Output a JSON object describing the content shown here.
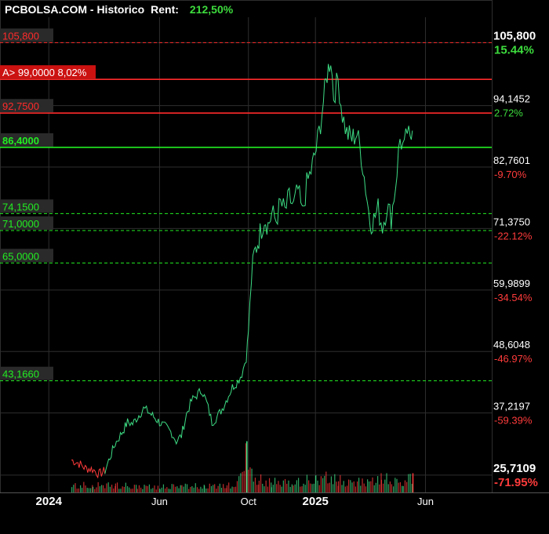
{
  "header": {
    "site": "PCBOLSA.COM - Historico",
    "rent_label": "Rent:",
    "rent_value": "212,50%"
  },
  "colors": {
    "background": "#000000",
    "grid": "#2e2e2e",
    "price_line_up": "#3ddc84",
    "price_line_down": "#ff3b3b",
    "support_green": "#22ee22",
    "resistance_red": "#ff2a2a",
    "label_bg": "#2a2a2a",
    "alert_bg": "#cc1111",
    "pct_positive": "#3ddc3d",
    "pct_negative": "#ff3b3b"
  },
  "chart_data": {
    "type": "line",
    "x_axis_labels": [
      {
        "label": "2024",
        "date": "2024-01-01",
        "bold": true
      },
      {
        "label": "Jun",
        "date": "2024-06-01",
        "bold": false
      },
      {
        "label": "Oct",
        "date": "2024-10-01",
        "bold": false
      },
      {
        "label": "2025",
        "date": "2025-01-01",
        "bold": true
      },
      {
        "label": "Jun",
        "date": "2025-06-01",
        "bold": false
      }
    ],
    "x_range": [
      "2023-10-26",
      "2025-08-31"
    ],
    "y_range": [
      22.5,
      110.5
    ],
    "grid": true,
    "y_ticks": [
      {
        "price": "105,800",
        "pct": "15.44%",
        "value": 105.8,
        "bold": true,
        "positive": true
      },
      {
        "price": "94,1452",
        "pct": "2.72%",
        "value": 94.1452,
        "bold": false,
        "positive": true
      },
      {
        "price": "82,7601",
        "pct": "-9.70%",
        "value": 82.7601,
        "bold": false,
        "positive": false
      },
      {
        "price": "71,3750",
        "pct": "-22.12%",
        "value": 71.375,
        "bold": false,
        "positive": false
      },
      {
        "price": "59,9899",
        "pct": "-34.54%",
        "value": 59.9899,
        "bold": false,
        "positive": false
      },
      {
        "price": "48,6048",
        "pct": "-46.97%",
        "value": 48.6048,
        "bold": false,
        "positive": false
      },
      {
        "price": "37,2197",
        "pct": "-59.39%",
        "value": 37.2197,
        "bold": false,
        "positive": false
      },
      {
        "price": "25,7109",
        "pct": "-71.95%",
        "value": 25.7109,
        "bold": true,
        "positive": false
      }
    ],
    "levels": [
      {
        "label": "105,800",
        "value": 105.8,
        "kind": "resistance",
        "dashed": true
      },
      {
        "label": "A> 99,0000  8,02%",
        "value": 99.0,
        "kind": "alert",
        "dashed": false
      },
      {
        "label": "92,7500",
        "value": 92.75,
        "kind": "resistance",
        "dashed": false
      },
      {
        "label": "86,4000",
        "value": 86.4,
        "kind": "support",
        "dashed": false
      },
      {
        "label": "74,1500",
        "value": 74.15,
        "kind": "support",
        "dashed": true
      },
      {
        "label": "71,0000",
        "value": 71.0,
        "kind": "support",
        "dashed": true
      },
      {
        "label": "65,0000",
        "value": 65.0,
        "kind": "support",
        "dashed": true
      },
      {
        "label": "43,1660",
        "value": 43.166,
        "kind": "support",
        "dashed": true
      }
    ],
    "series": [
      {
        "points": [
          [
            "2024-02-01",
            28.5
          ],
          [
            "2024-02-10",
            28.0
          ],
          [
            "2024-02-20",
            27.0
          ],
          [
            "2024-03-01",
            26.8
          ],
          [
            "2024-03-10",
            25.9
          ],
          [
            "2024-03-18",
            26.5
          ],
          [
            "2024-03-25",
            29.0
          ],
          [
            "2024-04-01",
            31.5
          ],
          [
            "2024-04-10",
            33.5
          ],
          [
            "2024-04-18",
            35.5
          ],
          [
            "2024-04-25",
            35.2
          ],
          [
            "2024-05-02",
            36.5
          ],
          [
            "2024-05-10",
            38.0
          ],
          [
            "2024-05-16",
            37.5
          ],
          [
            "2024-05-24",
            36.5
          ],
          [
            "2024-06-01",
            35.5
          ],
          [
            "2024-06-10",
            34.5
          ],
          [
            "2024-06-18",
            33.5
          ],
          [
            "2024-06-24",
            32.0
          ],
          [
            "2024-07-01",
            33.0
          ],
          [
            "2024-07-08",
            37.0
          ],
          [
            "2024-07-15",
            39.5
          ],
          [
            "2024-07-22",
            40.5
          ],
          [
            "2024-07-29",
            41.5
          ],
          [
            "2024-08-05",
            39.0
          ],
          [
            "2024-08-12",
            35.5
          ],
          [
            "2024-08-19",
            36.5
          ],
          [
            "2024-08-26",
            38.0
          ],
          [
            "2024-09-02",
            40.0
          ],
          [
            "2024-09-09",
            42.0
          ],
          [
            "2024-09-16",
            43.0
          ],
          [
            "2024-09-22",
            44.5
          ],
          [
            "2024-09-28",
            47.5
          ],
          [
            "2024-10-01",
            52.5
          ],
          [
            "2024-10-05",
            62.0
          ],
          [
            "2024-10-09",
            66.5
          ],
          [
            "2024-10-12",
            68.0
          ],
          [
            "2024-10-17",
            70.5
          ],
          [
            "2024-10-23",
            73.5
          ],
          [
            "2024-10-28",
            72.0
          ],
          [
            "2024-11-02",
            74.0
          ],
          [
            "2024-11-08",
            73.0
          ],
          [
            "2024-11-14",
            76.0
          ],
          [
            "2024-11-20",
            74.5
          ],
          [
            "2024-11-26",
            77.0
          ],
          [
            "2024-12-02",
            75.5
          ],
          [
            "2024-12-08",
            78.5
          ],
          [
            "2024-12-14",
            74.0
          ],
          [
            "2024-12-20",
            79.5
          ],
          [
            "2024-12-26",
            82.0
          ],
          [
            "2025-01-02",
            86.0
          ],
          [
            "2025-01-08",
            91.0
          ],
          [
            "2025-01-12",
            95.0
          ],
          [
            "2025-01-17",
            100.0
          ],
          [
            "2025-01-22",
            103.0
          ],
          [
            "2025-01-26",
            96.0
          ],
          [
            "2025-02-01",
            99.0
          ],
          [
            "2025-02-07",
            92.5
          ],
          [
            "2025-02-13",
            89.0
          ],
          [
            "2025-02-20",
            88.0
          ],
          [
            "2025-02-27",
            89.0
          ],
          [
            "2025-03-05",
            85.0
          ],
          [
            "2025-03-11",
            79.0
          ],
          [
            "2025-03-17",
            72.5
          ],
          [
            "2025-03-22",
            73.0
          ],
          [
            "2025-03-28",
            75.0
          ],
          [
            "2025-04-03",
            71.8
          ],
          [
            "2025-04-09",
            75.5
          ],
          [
            "2025-04-15",
            73.5
          ],
          [
            "2025-04-21",
            79.5
          ],
          [
            "2025-04-27",
            88.0
          ],
          [
            "2025-05-03",
            86.0
          ],
          [
            "2025-05-07",
            89.5
          ],
          [
            "2025-05-11",
            87.0
          ],
          [
            "2025-05-14",
            89.5
          ]
        ]
      }
    ],
    "down_segment_until": "2024-03-18",
    "volume": [
      [
        "2024-02-01",
        0.8
      ],
      [
        "2024-02-15",
        0.9
      ],
      [
        "2024-03-01",
        0.7
      ],
      [
        "2024-03-15",
        1.0
      ],
      [
        "2024-04-01",
        0.9
      ],
      [
        "2024-04-15",
        0.8
      ],
      [
        "2024-05-01",
        0.7
      ],
      [
        "2024-05-15",
        0.8
      ],
      [
        "2024-06-01",
        0.6
      ],
      [
        "2024-06-15",
        0.8
      ],
      [
        "2024-07-01",
        0.9
      ],
      [
        "2024-07-15",
        0.8
      ],
      [
        "2024-08-01",
        0.7
      ],
      [
        "2024-08-15",
        0.9
      ],
      [
        "2024-09-01",
        0.8
      ],
      [
        "2024-09-15",
        1.0
      ],
      [
        "2024-09-28",
        5.6
      ],
      [
        "2024-10-05",
        2.0
      ],
      [
        "2024-10-15",
        1.6
      ],
      [
        "2024-11-01",
        1.2
      ],
      [
        "2024-11-15",
        1.4
      ],
      [
        "2024-12-01",
        1.2
      ],
      [
        "2024-12-15",
        1.4
      ],
      [
        "2025-01-01",
        1.6
      ],
      [
        "2025-01-15",
        1.9
      ],
      [
        "2025-02-01",
        1.5
      ],
      [
        "2025-02-15",
        1.3
      ],
      [
        "2025-03-01",
        1.4
      ],
      [
        "2025-03-15",
        1.3
      ],
      [
        "2025-04-01",
        1.8
      ],
      [
        "2025-04-15",
        1.4
      ],
      [
        "2025-05-01",
        1.4
      ],
      [
        "2025-05-14",
        2.1
      ]
    ]
  }
}
